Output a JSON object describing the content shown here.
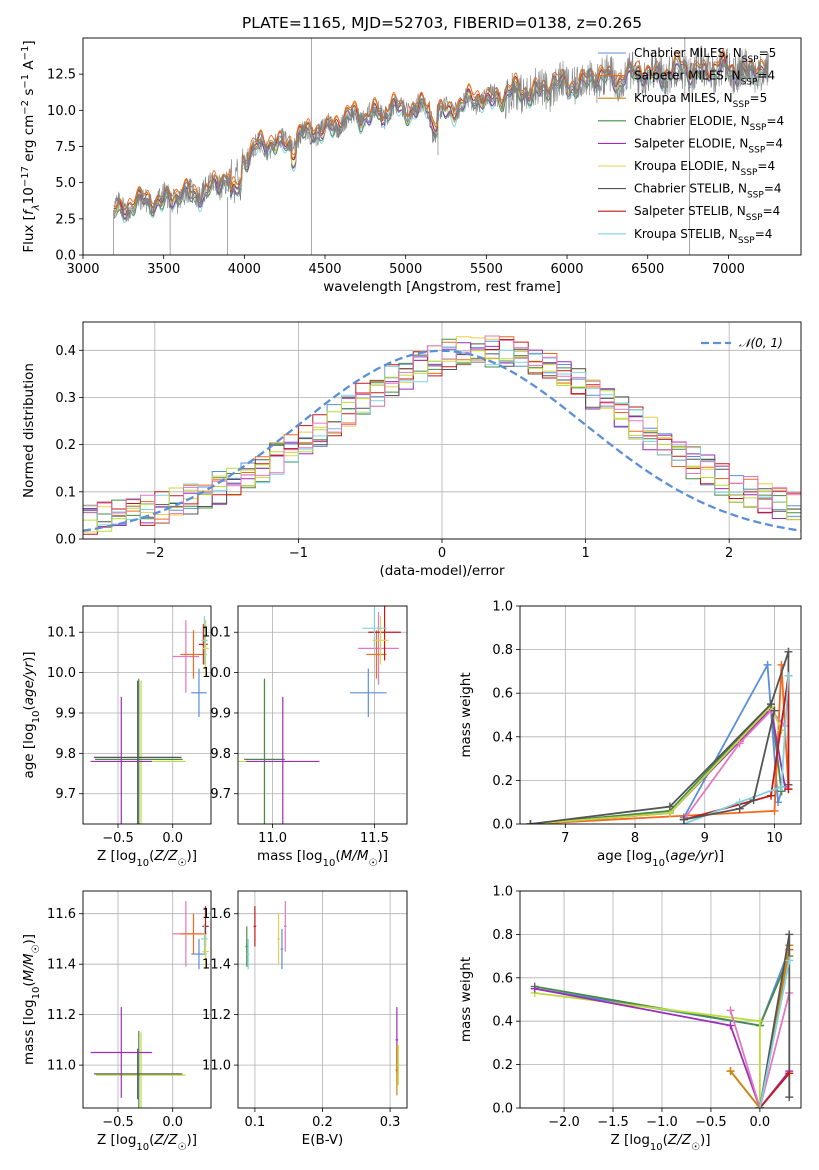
{
  "figure_title": "PLATE=1165, MJD=52703, FIBERID=0138, z=0.265",
  "colors": {
    "Chabrier MILES": "#5b8fd8",
    "Salpeter MILES": "#f26a1f",
    "Kroupa MILES": "#c7870f",
    "Chabrier ELODIE": "#4a8a4a",
    "Salpeter ELODIE": "#9b2fb8",
    "Kroupa ELODIE": "#e2d24a",
    "Chabrier STELIB": "#555555",
    "Salpeter STELIB": "#c21a1a",
    "Kroupa STELIB": "#7fd3e0",
    "pink": "#e377c2",
    "lime": "#bcdc3c",
    "gaussian": "#5b8fd8"
  },
  "chart_data": [
    {
      "id": "spectrum",
      "type": "line",
      "title": "PLATE=1165, MJD=52703, FIBERID=0138, z=0.265",
      "xlabel": "wavelength [Angstrom, rest frame]",
      "ylabel": "Flux [fλ10⁻¹⁷ erg cm⁻² s⁻¹ A⁻¹]",
      "xlim": [
        3000,
        7450
      ],
      "ylim": [
        0,
        15
      ],
      "xticks": [
        3000,
        3500,
        4000,
        4500,
        5000,
        5500,
        6000,
        6500,
        7000
      ],
      "yticks": [
        0.0,
        2.5,
        5.0,
        7.5,
        10.0,
        12.5
      ],
      "x_start": 3190,
      "x_end": 7250,
      "continuum_x": [
        3190,
        3400,
        3600,
        3800,
        3900,
        4000,
        4100,
        4300,
        4500,
        4700,
        4900,
        5100,
        5200,
        5400,
        5600,
        5800,
        6000,
        6200,
        6400,
        6600,
        6800,
        7000,
        7250
      ],
      "continuum_y": [
        3.1,
        3.7,
        4.0,
        4.6,
        5.2,
        6.9,
        7.5,
        7.9,
        8.8,
        9.6,
        10.0,
        10.2,
        9.8,
        10.6,
        11.0,
        11.4,
        11.8,
        12.2,
        12.4,
        12.6,
        12.8,
        12.8,
        12.7
      ],
      "series": [
        {
          "name": "Chabrier MILES, N_SSP=5"
        },
        {
          "name": "Salpeter MILES, N_SSP=4"
        },
        {
          "name": "Kroupa MILES, N_SSP=5"
        },
        {
          "name": "Chabrier ELODIE, N_SSP=4"
        },
        {
          "name": "Salpeter ELODIE, N_SSP=4"
        },
        {
          "name": "Kroupa ELODIE, N_SSP=4"
        },
        {
          "name": "Chabrier STELIB, N_SSP=4"
        },
        {
          "name": "Salpeter STELIB, N_SSP=4"
        },
        {
          "name": "Kroupa STELIB, N_SSP=4"
        }
      ],
      "legend": [
        {
          "prefix": "Chabrier MILES, N",
          "sub": "SSP",
          "suffix": "=5",
          "color": "#5b8fd8"
        },
        {
          "prefix": "Salpeter MILES, N",
          "sub": "SSP",
          "suffix": "=4",
          "color": "#f26a1f"
        },
        {
          "prefix": "Kroupa MILES, N",
          "sub": "SSP",
          "suffix": "=5",
          "color": "#c7870f"
        },
        {
          "prefix": "Chabrier ELODIE, N",
          "sub": "SSP",
          "suffix": "=4",
          "color": "#4a8a4a"
        },
        {
          "prefix": "Salpeter ELODIE, N",
          "sub": "SSP",
          "suffix": "=4",
          "color": "#9b2fb8"
        },
        {
          "prefix": "Kroupa ELODIE, N",
          "sub": "SSP",
          "suffix": "=4",
          "color": "#e2d24a"
        },
        {
          "prefix": "Chabrier STELIB, N",
          "sub": "SSP",
          "suffix": "=4",
          "color": "#555555"
        },
        {
          "prefix": "Salpeter STELIB, N",
          "sub": "SSP",
          "suffix": "=4",
          "color": "#c21a1a"
        },
        {
          "prefix": "Kroupa STELIB, N",
          "sub": "SSP",
          "suffix": "=4",
          "color": "#7fd3e0"
        }
      ],
      "legend_position": "upper right",
      "grid": false
    },
    {
      "id": "residuals",
      "type": "line",
      "xlabel": "(data-model)/error",
      "ylabel": "Normed distribution",
      "xlim": [
        -2.5,
        2.5
      ],
      "ylim": [
        0,
        0.46
      ],
      "xticks": [
        -2,
        -1,
        0,
        1,
        2
      ],
      "yticks": [
        0.0,
        0.1,
        0.2,
        0.3,
        0.4
      ],
      "bin_width": 0.1,
      "gaussian_name": "𝒩(0, 1)",
      "legend_position": "upper right",
      "grid": true
    },
    {
      "id": "age-vs-z",
      "type": "scatter",
      "xlabel": "Z [log10(Z/Z☉)]",
      "ylabel": "age  [log10(age/yr)]",
      "xlim": [
        -0.82,
        0.35
      ],
      "ylim": [
        9.625,
        10.165
      ],
      "xticks": [
        -0.5,
        0.0
      ],
      "yticks": [
        9.7,
        9.8,
        9.9,
        10.0,
        10.1
      ],
      "grid": true,
      "points": [
        {
          "x": -0.29,
          "y": 9.78,
          "xerr": 0.41,
          "yerr": 0.2,
          "color": "#bcdc3c"
        },
        {
          "x": -0.31,
          "y": 9.785,
          "xerr": 0.4,
          "yerr": 0.2,
          "color": "#4a8a4a"
        },
        {
          "x": -0.32,
          "y": 9.79,
          "xerr": 0.4,
          "yerr": 0.19,
          "color": "#555555"
        },
        {
          "x": -0.47,
          "y": 9.78,
          "xerr": 0.28,
          "yerr": 0.16,
          "color": "#9b2fb8"
        },
        {
          "x": 0.24,
          "y": 9.95,
          "xerr": 0.07,
          "yerr": 0.06,
          "color": "#5b8fd8"
        },
        {
          "x": 0.12,
          "y": 10.04,
          "xerr": 0.12,
          "yerr": 0.09,
          "color": "#e377c2"
        },
        {
          "x": 0.19,
          "y": 10.045,
          "xerr": 0.12,
          "yerr": 0.06,
          "color": "#f26a1f"
        },
        {
          "x": 0.28,
          "y": 10.07,
          "xerr": 0.04,
          "yerr": 0.05,
          "color": "#c21a1a"
        },
        {
          "x": 0.29,
          "y": 10.08,
          "xerr": 0.03,
          "yerr": 0.06,
          "color": "#7fd3e0"
        },
        {
          "x": 0.3,
          "y": 10.06,
          "xerr": 0.03,
          "yerr": 0.07,
          "color": "#e2d24a"
        }
      ]
    },
    {
      "id": "age-vs-mass",
      "type": "scatter",
      "xlabel": "mass [log10(M/M☉)]",
      "ylabel": "",
      "xlim": [
        10.83,
        11.66
      ],
      "ylim": [
        9.625,
        10.165
      ],
      "xticks": [
        11.0,
        11.5
      ],
      "yticks": [
        9.7,
        9.8,
        9.9,
        10.0,
        10.1
      ],
      "grid": true,
      "points": [
        {
          "x": 10.96,
          "y": 9.78,
          "xerr": 0.13,
          "yerr": 0.2,
          "color": "#bcdc3c"
        },
        {
          "x": 10.96,
          "y": 9.785,
          "xerr": 0.1,
          "yerr": 0.2,
          "color": "#4a8a4a"
        },
        {
          "x": 11.05,
          "y": 9.78,
          "xerr": 0.18,
          "yerr": 0.16,
          "color": "#9b2fb8"
        },
        {
          "x": 11.47,
          "y": 9.95,
          "xerr": 0.09,
          "yerr": 0.06,
          "color": "#5b8fd8"
        },
        {
          "x": 11.52,
          "y": 10.06,
          "xerr": 0.1,
          "yerr": 0.09,
          "color": "#e377c2"
        },
        {
          "x": 11.51,
          "y": 10.045,
          "xerr": 0.05,
          "yerr": 0.06,
          "color": "#f26a1f"
        },
        {
          "x": 11.55,
          "y": 10.1,
          "xerr": 0.08,
          "yerr": 0.07,
          "color": "#c21a1a"
        },
        {
          "x": 11.5,
          "y": 10.11,
          "xerr": 0.06,
          "yerr": 0.05,
          "color": "#7fd3e0"
        },
        {
          "x": 11.53,
          "y": 10.08,
          "xerr": 0.04,
          "yerr": 0.06,
          "color": "#e2d24a"
        }
      ]
    },
    {
      "id": "weight-vs-age",
      "type": "line",
      "xlabel": "age  [log10(age/yr)]",
      "ylabel": "mass weight",
      "xlim": [
        6.35,
        10.38
      ],
      "ylim": [
        0,
        1
      ],
      "xticks": [
        7,
        8,
        9,
        10
      ],
      "yticks": [
        0.0,
        0.2,
        0.4,
        0.6,
        0.8,
        1.0
      ],
      "grid": true,
      "series": [
        {
          "color": "#5b8fd8",
          "x": [
            8.7,
            9.9,
            10.05,
            10.1
          ],
          "y": [
            0.03,
            0.73,
            0.1,
            0.15
          ]
        },
        {
          "color": "#f26a1f",
          "x": [
            6.5,
            10.0,
            10.1,
            10.2
          ],
          "y": [
            0.0,
            0.06,
            0.73,
            0.16
          ]
        },
        {
          "color": "#4a8a4a",
          "x": [
            6.5,
            8.5,
            9.95,
            10.1
          ],
          "y": [
            0.0,
            0.06,
            0.55,
            0.15
          ]
        },
        {
          "color": "#9b2fb8",
          "x": [
            6.5,
            8.5,
            9.5,
            9.95,
            10.15
          ],
          "y": [
            0.0,
            0.05,
            0.38,
            0.53,
            0.17
          ]
        },
        {
          "color": "#e377c2",
          "x": [
            8.7,
            9.5,
            9.95,
            10.15
          ],
          "y": [
            0.02,
            0.37,
            0.52,
            0.45
          ]
        },
        {
          "color": "#bcdc3c",
          "x": [
            6.5,
            8.5,
            9.95,
            10.1
          ],
          "y": [
            0.0,
            0.05,
            0.54,
            0.43
          ]
        },
        {
          "color": "#555555",
          "x": [
            6.5,
            8.5,
            9.95,
            10.2,
            10.2
          ],
          "y": [
            0.0,
            0.08,
            0.55,
            0.79,
            0.18
          ]
        },
        {
          "color": "#c21a1a",
          "x": [
            8.7,
            9.95,
            10.2,
            10.2
          ],
          "y": [
            0.02,
            0.13,
            0.68,
            0.16
          ]
        },
        {
          "color": "#7fd3e0",
          "x": [
            8.7,
            9.5,
            10.1,
            10.2
          ],
          "y": [
            0.0,
            0.1,
            0.17,
            0.68
          ]
        },
        {
          "color": "#555555",
          "x": [
            8.7,
            9.5,
            9.7,
            10.0
          ],
          "y": [
            0.02,
            0.07,
            0.11,
            0.52
          ]
        }
      ]
    },
    {
      "id": "mass-vs-z",
      "type": "scatter",
      "xlabel": "Z [log10(Z/Z☉)]",
      "ylabel": "mass [log10(M/M☉)]",
      "xlim": [
        -0.82,
        0.35
      ],
      "ylim": [
        10.83,
        11.69
      ],
      "xticks": [
        -0.5,
        0.0
      ],
      "yticks": [
        11.0,
        11.2,
        11.4,
        11.6
      ],
      "grid": true,
      "points": [
        {
          "x": -0.29,
          "y": 10.96,
          "xerr": 0.41,
          "yerr": 0.17,
          "color": "#bcdc3c"
        },
        {
          "x": -0.31,
          "y": 10.965,
          "xerr": 0.4,
          "yerr": 0.17,
          "color": "#4a8a4a"
        },
        {
          "x": -0.32,
          "y": 10.965,
          "xerr": 0.4,
          "yerr": 0.1,
          "color": "#555555"
        },
        {
          "x": -0.47,
          "y": 11.05,
          "xerr": 0.28,
          "yerr": 0.18,
          "color": "#9b2fb8"
        },
        {
          "x": 0.24,
          "y": 11.44,
          "xerr": 0.07,
          "yerr": 0.06,
          "color": "#5b8fd8"
        },
        {
          "x": 0.12,
          "y": 11.52,
          "xerr": 0.12,
          "yerr": 0.13,
          "color": "#e377c2"
        },
        {
          "x": 0.19,
          "y": 11.52,
          "xerr": 0.12,
          "yerr": 0.08,
          "color": "#f26a1f"
        },
        {
          "x": 0.3,
          "y": 11.55,
          "xerr": 0.03,
          "yerr": 0.08,
          "color": "#c21a1a"
        },
        {
          "x": 0.29,
          "y": 11.5,
          "xerr": 0.03,
          "yerr": 0.06,
          "color": "#7fd3e0"
        },
        {
          "x": 0.3,
          "y": 11.45,
          "xerr": 0.03,
          "yerr": 0.07,
          "color": "#e2d24a"
        }
      ]
    },
    {
      "id": "mass-vs-ebv",
      "type": "scatter",
      "xlabel": "E(B-V)",
      "ylabel": "",
      "xlim": [
        0.075,
        0.325
      ],
      "ylim": [
        10.83,
        11.69
      ],
      "xticks": [
        0.1,
        0.2,
        0.3
      ],
      "yticks": [
        11.0,
        11.2,
        11.4,
        11.6
      ],
      "grid": true,
      "points": [
        {
          "x": 0.088,
          "y": 11.47,
          "xerr": 0.002,
          "yerr": 0.08,
          "color": "#4a8a4a"
        },
        {
          "x": 0.09,
          "y": 11.44,
          "xerr": 0.002,
          "yerr": 0.06,
          "color": "#7fd3e0"
        },
        {
          "x": 0.1,
          "y": 11.55,
          "xerr": 0.002,
          "yerr": 0.08,
          "color": "#c21a1a"
        },
        {
          "x": 0.135,
          "y": 11.5,
          "xerr": 0.002,
          "yerr": 0.1,
          "color": "#e2d24a"
        },
        {
          "x": 0.14,
          "y": 11.46,
          "xerr": 0.002,
          "yerr": 0.08,
          "color": "#5b8fd8"
        },
        {
          "x": 0.145,
          "y": 11.55,
          "xerr": 0.002,
          "yerr": 0.1,
          "color": "#e377c2"
        },
        {
          "x": 0.31,
          "y": 11.1,
          "xerr": 0.002,
          "yerr": 0.13,
          "color": "#9b2fb8"
        },
        {
          "x": 0.31,
          "y": 10.98,
          "xerr": 0.002,
          "yerr": 0.1,
          "color": "#c7870f"
        },
        {
          "x": 0.312,
          "y": 11.0,
          "xerr": 0.002,
          "yerr": 0.08,
          "color": "#bcdc3c"
        }
      ]
    },
    {
      "id": "weight-vs-z",
      "type": "line",
      "xlabel": "Z [log10(Z/Z☉)]",
      "ylabel": "mass weight",
      "xlim": [
        -2.45,
        0.42
      ],
      "ylim": [
        0,
        1
      ],
      "xticks": [
        -2.0,
        -1.5,
        -1.0,
        -0.5,
        0.0
      ],
      "yticks": [
        0.0,
        0.2,
        0.4,
        0.6,
        0.8,
        1.0
      ],
      "grid": true,
      "series": [
        {
          "color": "#5b8fd8",
          "x": [
            -2.3,
            0.0,
            0.3
          ],
          "y": [
            0.55,
            0.38,
            0.73
          ]
        },
        {
          "color": "#4a8a4a",
          "x": [
            -2.3,
            0.0,
            0.3
          ],
          "y": [
            0.56,
            0.38,
            0.7
          ]
        },
        {
          "color": "#bcdc3c",
          "x": [
            -2.3,
            0.0,
            0.0,
            0.3
          ],
          "y": [
            0.53,
            0.4,
            0.0,
            0.68
          ]
        },
        {
          "color": "#9b2fb8",
          "x": [
            -2.3,
            -0.3,
            0.0,
            0.3
          ],
          "y": [
            0.55,
            0.38,
            0.0,
            0.17
          ]
        },
        {
          "color": "#e377c2",
          "x": [
            -0.3,
            0.0,
            0.3
          ],
          "y": [
            0.45,
            0.0,
            0.53
          ]
        },
        {
          "color": "#f26a1f",
          "x": [
            -0.3,
            0.0,
            0.3
          ],
          "y": [
            0.17,
            0.0,
            0.73
          ]
        },
        {
          "color": "#c7870f",
          "x": [
            -0.3,
            0.0,
            0.3
          ],
          "y": [
            0.17,
            0.0,
            0.75
          ]
        },
        {
          "color": "#555555",
          "x": [
            0.0,
            0.3,
            0.3
          ],
          "y": [
            0.0,
            0.8,
            0.05
          ]
        },
        {
          "color": "#c21a1a",
          "x": [
            0.0,
            0.3
          ],
          "y": [
            0.0,
            0.16
          ]
        },
        {
          "color": "#7fd3e0",
          "x": [
            0.0,
            0.3
          ],
          "y": [
            0.0,
            0.68
          ]
        }
      ]
    }
  ]
}
